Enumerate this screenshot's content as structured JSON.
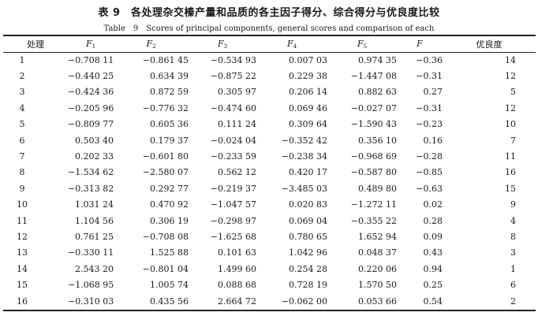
{
  "table": {
    "title_cn": "表 9　各处理杂交榛产量和品质的各主因子得分、综合得分与优良度比较",
    "title_en": "Table　9　Scores of principal components, general scores and comparison of each",
    "headers": {
      "treatment": "处理",
      "f1": "F",
      "f1_sub": "1",
      "f2": "F",
      "f2_sub": "2",
      "f3": "F",
      "f3_sub": "3",
      "f4": "F",
      "f4_sub": "4",
      "f5": "F",
      "f5_sub": "5",
      "f": "F",
      "rank": "优良度"
    },
    "rows": [
      {
        "id": "1",
        "f1": "−0.708 11",
        "f2": "−0.861 45",
        "f3": "−0.534 93",
        "f4": "0.007 03",
        "f5": "0.974 35",
        "f": "−0.36",
        "rank": "14"
      },
      {
        "id": "2",
        "f1": "−0.440 25",
        "f2": "0.634 39",
        "f3": "−0.875 22",
        "f4": "0.229 38",
        "f5": "−1.447 08",
        "f": "−0.31",
        "rank": "12"
      },
      {
        "id": "3",
        "f1": "−0.424 36",
        "f2": "0.872 59",
        "f3": "0.305 97",
        "f4": "0.206 14",
        "f5": "0.882 63",
        "f": "0.27",
        "rank": "5"
      },
      {
        "id": "4",
        "f1": "−0.205 96",
        "f2": "−0.776 32",
        "f3": "−0.474 60",
        "f4": "0.069 46",
        "f5": "−0.027 07",
        "f": "−0.31",
        "rank": "12"
      },
      {
        "id": "5",
        "f1": "−0.809 77",
        "f2": "0.605 36",
        "f3": "0.111 24",
        "f4": "0.309 64",
        "f5": "−1.590 43",
        "f": "−0.23",
        "rank": "10"
      },
      {
        "id": "6",
        "f1": "0.503 40",
        "f2": "0.179 37",
        "f3": "−0.024 04",
        "f4": "−0.352 42",
        "f5": "0.356 10",
        "f": "0.16",
        "rank": "7"
      },
      {
        "id": "7",
        "f1": "0.202 33",
        "f2": "−0.601 80",
        "f3": "−0.233 59",
        "f4": "−0.238 34",
        "f5": "−0.968 69",
        "f": "−0.28",
        "rank": "11"
      },
      {
        "id": "8",
        "f1": "−1.534 62",
        "f2": "−2.580 07",
        "f3": "0.562 12",
        "f4": "0.420 17",
        "f5": "−0.587 80",
        "f": "−0.85",
        "rank": "16"
      },
      {
        "id": "9",
        "f1": "−0.313 82",
        "f2": "0.292 77",
        "f3": "−0.219 37",
        "f4": "−3.485 03",
        "f5": "0.489 80",
        "f": "−0.63",
        "rank": "15"
      },
      {
        "id": "10",
        "f1": "1.031 24",
        "f2": "0.470 92",
        "f3": "−1.047 57",
        "f4": "0.020 83",
        "f5": "−1.272 11",
        "f": "0.02",
        "rank": "9"
      },
      {
        "id": "11",
        "f1": "1.104 56",
        "f2": "0.306 19",
        "f3": "−0.298 97",
        "f4": "0.069 04",
        "f5": "−0.355 22",
        "f": "0.28",
        "rank": "4"
      },
      {
        "id": "12",
        "f1": "0.761 25",
        "f2": "−0.708 08",
        "f3": "−1.625 68",
        "f4": "0.780 65",
        "f5": "1.652 94",
        "f": "0.09",
        "rank": "8"
      },
      {
        "id": "13",
        "f1": "−0.330 11",
        "f2": "1.525 88",
        "f3": "0.101 63",
        "f4": "1.042 96",
        "f5": "0.048 37",
        "f": "0.43",
        "rank": "3"
      },
      {
        "id": "14",
        "f1": "2.543 20",
        "f2": "−0.801 04",
        "f3": "1.499 60",
        "f4": "0.254 28",
        "f5": "0.220 06",
        "f": "0.94",
        "rank": "1"
      },
      {
        "id": "15",
        "f1": "−1.068 95",
        "f2": "1.005 74",
        "f3": "0.088 68",
        "f4": "0.728 19",
        "f5": "1.570 50",
        "f": "0.25",
        "rank": "6"
      },
      {
        "id": "16",
        "f1": "−0.310 03",
        "f2": "0.435 56",
        "f3": "2.664 72",
        "f4": "−0.062 00",
        "f5": "0.053 66",
        "f": "0.54",
        "rank": "2"
      }
    ]
  }
}
